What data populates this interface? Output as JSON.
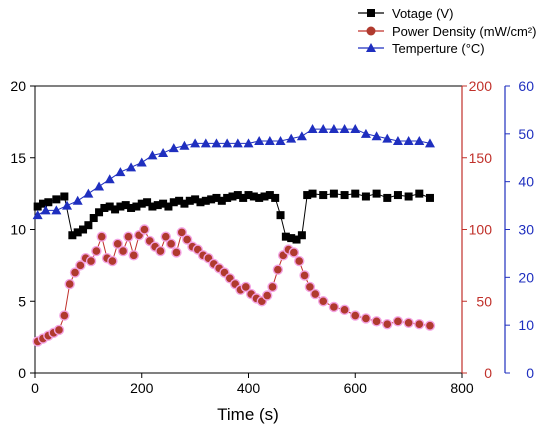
{
  "chart_data": {
    "type": "line",
    "xlabel": "Time (s)",
    "xlim": [
      0,
      800
    ],
    "x_ticks": [
      "0",
      "200",
      "400",
      "600",
      "800"
    ],
    "axes": {
      "left": {
        "ylim": [
          0,
          20
        ],
        "ticks": [
          "0",
          "5",
          "10",
          "15",
          "20"
        ],
        "color": "#000000"
      },
      "right1": {
        "ylim": [
          0,
          200
        ],
        "ticks": [
          "0",
          "50",
          "100",
          "150",
          "200"
        ],
        "color": "#c0302a"
      },
      "right2": {
        "ylim": [
          0,
          60
        ],
        "ticks": [
          "0",
          "10",
          "20",
          "30",
          "40",
          "50",
          "60"
        ],
        "color": "#1f2fbf"
      }
    },
    "legend_position": "top-right",
    "series": [
      {
        "name": "Votage (V)",
        "axis": "left",
        "color": "#000000",
        "marker": "square",
        "x": [
          5,
          15,
          25,
          40,
          55,
          70,
          80,
          90,
          100,
          110,
          120,
          130,
          140,
          150,
          160,
          170,
          180,
          190,
          200,
          210,
          220,
          230,
          240,
          250,
          260,
          270,
          280,
          290,
          300,
          310,
          320,
          330,
          340,
          350,
          360,
          370,
          380,
          390,
          400,
          410,
          420,
          430,
          440,
          450,
          460,
          470,
          480,
          490,
          500,
          510,
          520,
          540,
          560,
          580,
          600,
          620,
          640,
          660,
          680,
          700,
          720,
          740
        ],
        "y": [
          11.6,
          11.8,
          11.9,
          12.1,
          12.3,
          9.6,
          9.8,
          10.0,
          10.3,
          10.8,
          11.2,
          11.5,
          11.6,
          11.4,
          11.6,
          11.7,
          11.5,
          11.6,
          11.8,
          11.9,
          11.6,
          11.7,
          11.8,
          11.6,
          11.9,
          12.0,
          11.8,
          12.0,
          12.1,
          11.9,
          12.0,
          12.1,
          12.2,
          12.0,
          12.2,
          12.3,
          12.4,
          12.2,
          12.4,
          12.3,
          12.2,
          12.3,
          12.4,
          12.2,
          11.0,
          9.5,
          9.4,
          9.3,
          9.6,
          12.4,
          12.5,
          12.4,
          12.5,
          12.4,
          12.5,
          12.3,
          12.5,
          12.2,
          12.4,
          12.3,
          12.5,
          12.2
        ]
      },
      {
        "name": "Power Density (mW/cm²)",
        "axis": "right1",
        "color": "#c0302a",
        "marker": "circle",
        "x": [
          5,
          15,
          25,
          35,
          45,
          55,
          65,
          75,
          85,
          95,
          105,
          115,
          125,
          135,
          145,
          155,
          165,
          175,
          185,
          195,
          205,
          215,
          225,
          235,
          245,
          255,
          265,
          275,
          285,
          295,
          305,
          315,
          325,
          335,
          345,
          355,
          365,
          375,
          385,
          395,
          405,
          415,
          425,
          435,
          445,
          455,
          465,
          475,
          485,
          495,
          505,
          515,
          525,
          540,
          560,
          580,
          600,
          620,
          640,
          660,
          680,
          700,
          720,
          740
        ],
        "y": [
          22,
          24,
          26,
          28,
          30,
          40,
          62,
          70,
          75,
          80,
          78,
          85,
          95,
          80,
          78,
          90,
          85,
          95,
          82,
          96,
          100,
          92,
          88,
          85,
          95,
          90,
          84,
          98,
          93,
          88,
          86,
          82,
          80,
          76,
          73,
          70,
          66,
          62,
          58,
          60,
          55,
          52,
          50,
          54,
          60,
          72,
          82,
          86,
          84,
          78,
          68,
          60,
          55,
          50,
          46,
          44,
          40,
          38,
          36,
          34,
          36,
          35,
          34,
          33
        ]
      },
      {
        "name": "Temperture (°C)",
        "axis": "right2",
        "color": "#1f2fbf",
        "marker": "triangle",
        "x": [
          5,
          20,
          40,
          60,
          80,
          100,
          120,
          140,
          160,
          180,
          200,
          220,
          240,
          260,
          280,
          300,
          320,
          340,
          360,
          380,
          400,
          420,
          440,
          460,
          480,
          500,
          520,
          540,
          560,
          580,
          600,
          620,
          640,
          660,
          680,
          700,
          720,
          740
        ],
        "y": [
          33,
          34,
          34,
          35,
          36,
          37.5,
          39,
          40.5,
          42,
          43,
          44,
          45.5,
          46,
          47,
          47.5,
          48,
          48,
          48,
          48,
          48,
          48,
          48.5,
          48.5,
          48.5,
          49,
          49.5,
          51,
          51,
          51,
          51,
          51,
          50,
          49.5,
          49,
          48.5,
          48.5,
          48.5,
          48
        ]
      }
    ]
  }
}
